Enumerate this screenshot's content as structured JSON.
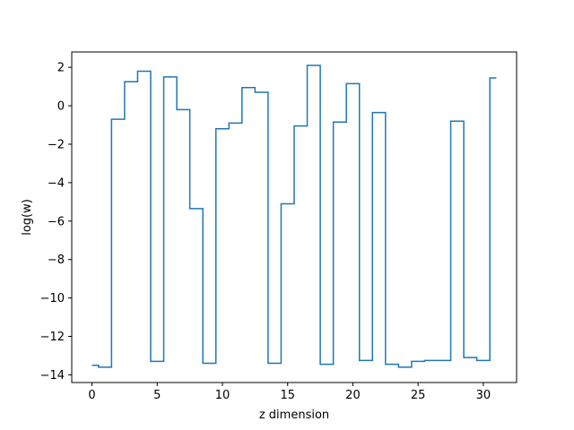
{
  "chart_data": {
    "type": "line",
    "drawstyle": "steps-mid",
    "title": "",
    "xlabel": "z dimension",
    "ylabel": "log(w)",
    "xlim": [
      -1.55,
      32.55
    ],
    "ylim": [
      -14.4,
      2.8
    ],
    "xticks": [
      0,
      5,
      10,
      15,
      20,
      25,
      30
    ],
    "yticks": [
      -14,
      -12,
      -10,
      -8,
      -6,
      -4,
      -2,
      0,
      2
    ],
    "grid": false,
    "legend": "none",
    "series": [
      {
        "color": "#1f77b4",
        "x": [
          0,
          1,
          2,
          3,
          4,
          5,
          6,
          7,
          8,
          9,
          10,
          11,
          12,
          13,
          14,
          15,
          16,
          17,
          18,
          19,
          20,
          21,
          22,
          23,
          24,
          25,
          26,
          27,
          28,
          29,
          30,
          31
        ],
        "y": [
          -13.5,
          -13.6,
          -0.7,
          1.25,
          1.8,
          -13.3,
          1.5,
          -0.2,
          -5.35,
          -13.4,
          -1.2,
          -0.9,
          0.95,
          0.7,
          -13.4,
          -5.1,
          -1.05,
          2.1,
          -13.45,
          -0.85,
          1.15,
          -13.25,
          -0.35,
          -13.45,
          -13.6,
          -13.3,
          -13.25,
          -13.25,
          -0.8,
          -13.1,
          -13.25,
          1.45
        ]
      }
    ]
  }
}
